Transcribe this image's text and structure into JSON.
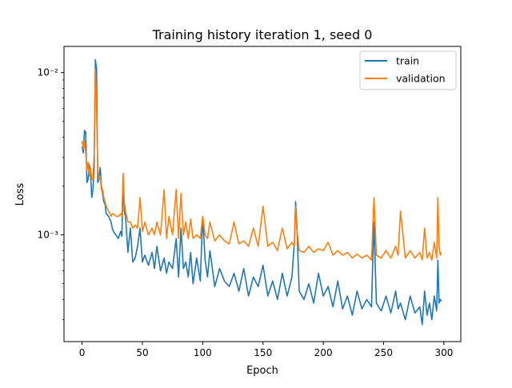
{
  "chart_data": {
    "type": "line",
    "title": "Training history iteration 1, seed 0",
    "xlabel": "Epoch",
    "ylabel": "Loss",
    "xlim": [
      -15,
      314
    ],
    "ylim": [
      0.00022,
      0.0145
    ],
    "yscale": "log",
    "grid": false,
    "legend_position": "top-right",
    "x_ticks": [
      0,
      50,
      100,
      150,
      200,
      250,
      300
    ],
    "x_tick_labels": [
      "0",
      "50",
      "100",
      "150",
      "200",
      "250",
      "300"
    ],
    "y_ticks": [
      0.001,
      0.01
    ],
    "y_tick_labels": [
      "10⁻³",
      "10⁻²"
    ],
    "series": [
      {
        "name": "train",
        "color": "#1f77b4",
        "x": [
          0,
          1,
          2,
          3,
          4,
          5,
          6,
          7,
          8,
          9,
          10,
          11,
          12,
          13,
          14,
          15,
          16,
          17,
          18,
          19,
          20,
          22,
          24,
          25,
          26,
          28,
          30,
          32,
          33,
          34,
          35,
          36,
          38,
          40,
          42,
          44,
          46,
          48,
          50,
          52,
          55,
          58,
          60,
          62,
          65,
          68,
          70,
          72,
          75,
          78,
          80,
          82,
          84,
          86,
          88,
          90,
          92,
          95,
          98,
          100,
          102,
          104,
          106,
          110,
          114,
          118,
          122,
          126,
          130,
          134,
          138,
          142,
          146,
          150,
          154,
          158,
          162,
          166,
          170,
          174,
          176,
          177,
          178,
          180,
          184,
          188,
          192,
          196,
          200,
          204,
          208,
          212,
          216,
          220,
          224,
          228,
          232,
          236,
          240,
          241,
          242,
          244,
          248,
          252,
          256,
          260,
          262,
          264,
          268,
          272,
          276,
          280,
          282,
          284,
          286,
          288,
          290,
          292,
          294,
          295,
          296,
          297,
          298
        ],
        "y": [
          0.0035,
          0.0032,
          0.0044,
          0.0043,
          0.0021,
          0.0022,
          0.0027,
          0.0024,
          0.0017,
          0.0019,
          0.0026,
          0.012,
          0.0105,
          0.0021,
          0.0022,
          0.0026,
          0.002,
          0.0018,
          0.0016,
          0.00155,
          0.00135,
          0.0013,
          0.0012,
          0.0011,
          0.00105,
          0.001,
          0.00095,
          0.00105,
          0.00098,
          0.0021,
          0.0014,
          0.0013,
          0.00078,
          0.0011,
          0.00068,
          0.00072,
          0.00085,
          0.0011,
          0.00068,
          0.00075,
          0.00065,
          0.00078,
          0.00062,
          0.00085,
          0.0006,
          0.00072,
          0.00058,
          0.00068,
          0.00062,
          0.00095,
          0.00055,
          0.0011,
          0.00062,
          0.00068,
          0.00055,
          0.00078,
          0.0005,
          0.00072,
          0.00052,
          0.0013,
          0.0007,
          0.00055,
          0.0008,
          0.00048,
          0.00062,
          0.00052,
          0.00048,
          0.00058,
          0.00045,
          0.00062,
          0.00042,
          0.00055,
          0.00048,
          0.00065,
          0.00042,
          0.00052,
          0.0004,
          0.00058,
          0.00042,
          0.00055,
          0.0009,
          0.0016,
          0.0012,
          0.00045,
          0.0004,
          0.0005,
          0.00038,
          0.00058,
          0.00042,
          0.00048,
          0.00036,
          0.00052,
          0.00035,
          0.00042,
          0.00032,
          0.00045,
          0.00035,
          0.0004,
          0.00036,
          0.0007,
          0.0012,
          0.00038,
          0.00034,
          0.00042,
          0.00033,
          0.00045,
          0.00035,
          0.00038,
          0.0003,
          0.00042,
          0.00033,
          0.00036,
          0.00028,
          0.00045,
          0.00032,
          0.00038,
          0.0003,
          0.00042,
          0.00034,
          0.0007,
          0.00038,
          0.0004,
          0.00039
        ]
      },
      {
        "name": "validation",
        "color": "#ff7f0e",
        "x": [
          0,
          1,
          2,
          3,
          4,
          5,
          6,
          7,
          8,
          9,
          10,
          11,
          12,
          13,
          14,
          15,
          16,
          17,
          18,
          19,
          20,
          22,
          24,
          25,
          26,
          28,
          30,
          32,
          33,
          34,
          35,
          36,
          38,
          40,
          42,
          44,
          46,
          48,
          50,
          52,
          55,
          58,
          60,
          62,
          65,
          68,
          70,
          72,
          75,
          78,
          80,
          82,
          84,
          86,
          88,
          90,
          92,
          95,
          98,
          100,
          102,
          104,
          106,
          110,
          114,
          118,
          122,
          126,
          130,
          134,
          138,
          142,
          146,
          150,
          154,
          158,
          162,
          166,
          170,
          174,
          176,
          177,
          178,
          180,
          184,
          188,
          192,
          196,
          200,
          204,
          208,
          212,
          216,
          220,
          224,
          228,
          232,
          236,
          240,
          241,
          242,
          244,
          248,
          252,
          256,
          260,
          262,
          264,
          268,
          272,
          276,
          280,
          282,
          284,
          286,
          288,
          290,
          292,
          294,
          295,
          296,
          297,
          298
        ],
        "y": [
          0.0038,
          0.0034,
          0.0038,
          0.0032,
          0.0025,
          0.0028,
          0.0023,
          0.0026,
          0.0022,
          0.0022,
          0.0032,
          0.0105,
          0.0062,
          0.0025,
          0.0022,
          0.0023,
          0.0019,
          0.0019,
          0.0017,
          0.0016,
          0.0015,
          0.0014,
          0.0013,
          0.00135,
          0.00135,
          0.0013,
          0.0013,
          0.00135,
          0.0013,
          0.0024,
          0.0016,
          0.0014,
          0.0012,
          0.0012,
          0.0011,
          0.00115,
          0.0011,
          0.0017,
          0.00105,
          0.0012,
          0.001,
          0.0011,
          0.001,
          0.0012,
          0.001,
          0.0019,
          0.00095,
          0.0013,
          0.001,
          0.0019,
          0.00095,
          0.0018,
          0.001,
          0.0012,
          0.00095,
          0.00125,
          0.00095,
          0.001,
          0.00095,
          0.0013,
          0.001,
          0.00095,
          0.0012,
          0.00092,
          0.001,
          0.00092,
          0.00088,
          0.0012,
          0.00088,
          0.00092,
          0.00085,
          0.0011,
          0.00085,
          0.0015,
          0.00085,
          0.0009,
          0.0008,
          0.0011,
          0.00082,
          0.0009,
          0.00085,
          0.0015,
          0.0011,
          0.0008,
          0.00078,
          0.00085,
          0.00078,
          0.00082,
          0.0008,
          0.0009,
          0.00075,
          0.0008,
          0.00075,
          0.00078,
          0.00072,
          0.00076,
          0.00072,
          0.00075,
          0.0007,
          0.0011,
          0.0017,
          0.00075,
          0.00072,
          0.0008,
          0.00072,
          0.00085,
          0.00075,
          0.0014,
          0.00072,
          0.0008,
          0.00072,
          0.00078,
          0.0007,
          0.0011,
          0.00072,
          0.00078,
          0.0007,
          0.0009,
          0.00072,
          0.0017,
          0.00085,
          0.00075,
          0.00078
        ]
      }
    ]
  }
}
